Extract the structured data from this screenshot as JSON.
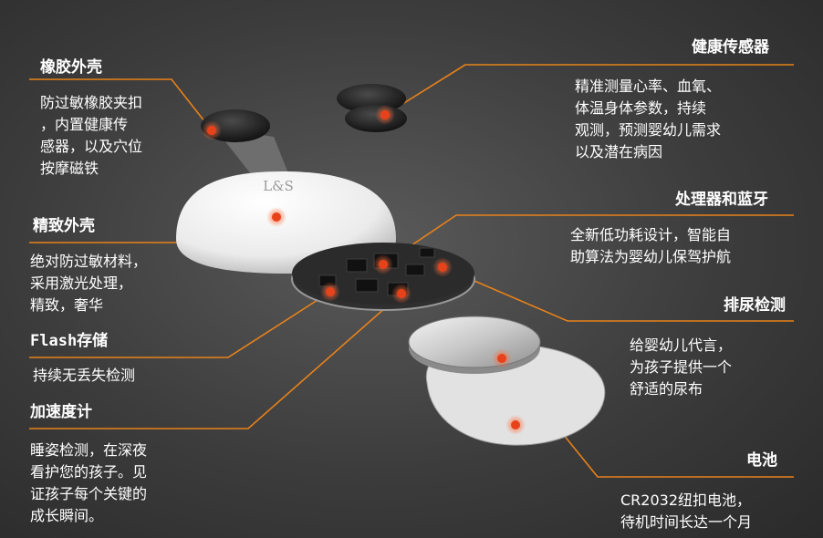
{
  "colors": {
    "accent": "#e8821a",
    "dot": "#e8421a",
    "text": "#ffffff"
  },
  "left": {
    "rubber_shell": {
      "title": "橡胶外壳",
      "desc": [
        "防过敏橡胶夹扣",
        "，内置健康传",
        "感器，以及穴位",
        "按摩磁铁"
      ]
    },
    "fine_shell": {
      "title": "精致外壳",
      "desc": [
        "绝对防过敏材料，",
        "采用激光处理，",
        "精致，奢华"
      ]
    },
    "flash": {
      "title": "Flash存储",
      "desc": [
        "持续无丢失检测"
      ]
    },
    "accelerometer": {
      "title": "加速度计",
      "desc": [
        "睡姿检测，在深夜",
        "看护您的孩子。见",
        "证孩子每个关键的",
        "成长瞬间。"
      ]
    }
  },
  "right": {
    "health_sensor": {
      "title": "健康传感器",
      "desc": [
        "精准测量心率、血氧、",
        "体温身体参数，持续",
        "观测，预测婴幼儿需求",
        "以及潜在病因"
      ]
    },
    "processor_bt": {
      "title": "处理器和蓝牙",
      "desc": [
        "全新低功耗设计，智能自",
        "助算法为婴幼儿保驾护航"
      ]
    },
    "urine": {
      "title": "排尿检测",
      "desc": [
        "给婴幼儿代言，",
        "为孩子提供一个",
        "舒适的尿布"
      ]
    },
    "battery": {
      "title": "电池",
      "desc": [
        "CR2032纽扣电池，",
        "待机时间长达一个月"
      ]
    }
  },
  "device": {
    "logo": "L&S"
  }
}
